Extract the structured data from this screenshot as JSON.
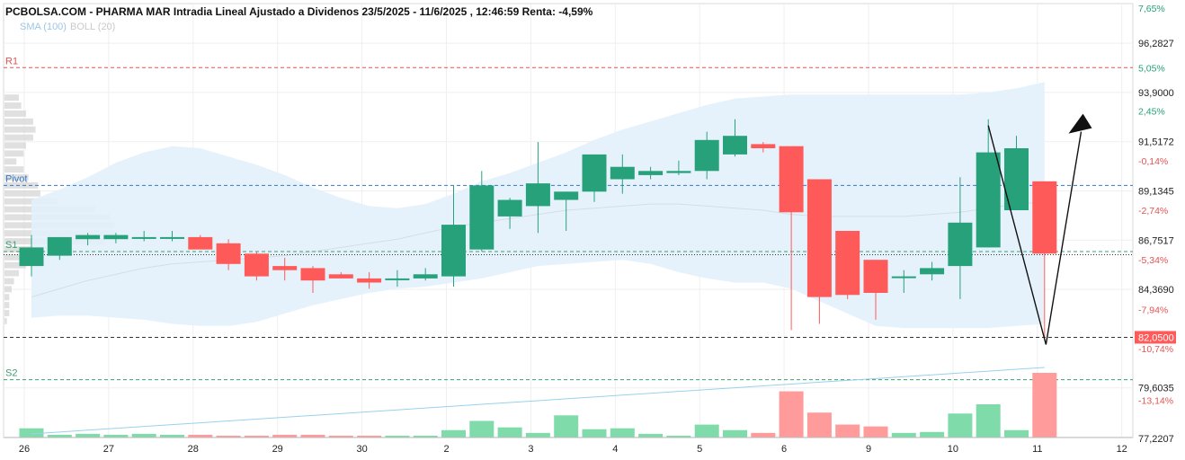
{
  "chart_data": {
    "type": "candlestick",
    "title": "PCBOLSA.COM - PHARMA MAR Intradia Lineal Ajustado a Dividenos 23/5/2025 - 11/6/2025 , 12:46:59 Renta: -4,59%",
    "indicators": [
      {
        "label": "SMA (100)",
        "color": "#9cc7e6"
      },
      {
        "label": "BOLL (20)",
        "color": "#c9c9c9"
      }
    ],
    "colors": {
      "up": "#26a17a",
      "down": "#ff5a5a",
      "up_volume": "#7fdcaa",
      "down_volume": "#ff9b9b",
      "band": "#e3f1fb",
      "pivot": "#3a78c2",
      "r1": "#e35353",
      "s1": "#3aa070",
      "s2": "#3aa070",
      "sma_volume": "#9ad1ee"
    },
    "y_axis": {
      "ylim": [
        77.2,
        98.2
      ],
      "price_ticks": [
        "96,2827",
        "93,9000",
        "91,5172",
        "89,1345",
        "86,7517",
        "84,3690",
        "79,6035",
        "77,2207"
      ],
      "pct_ticks": [
        "7,65%",
        "5,05%",
        "2,45%",
        "-0,14%",
        "-2,74%",
        "-5,34%",
        "-7,94%",
        "-10,74%",
        "-13,14%"
      ],
      "current_price": "82,0500",
      "current_pct": "-10,74%"
    },
    "x_axis": {
      "labels": [
        "26",
        "27",
        "28",
        "29",
        "30",
        "2",
        "3",
        "4",
        "5",
        "6",
        "9",
        "10",
        "11",
        "12"
      ]
    },
    "levels": [
      {
        "name": "R1",
        "value": 95.1,
        "color": "#e35353"
      },
      {
        "name": "Pivot",
        "value": 89.4,
        "color": "#3a78c2"
      },
      {
        "name": "S1",
        "value": 86.2,
        "color": "#3aa070"
      },
      {
        "name": "S2",
        "value": 80.0,
        "color": "#3aa070"
      },
      {
        "name": "",
        "value": 82.05,
        "color": "#333333"
      }
    ],
    "candles": [
      {
        "o": 85.5,
        "h": 87.0,
        "l": 85.0,
        "c": 86.4
      },
      {
        "o": 86.0,
        "h": 86.9,
        "l": 85.8,
        "c": 86.9
      },
      {
        "o": 86.8,
        "h": 87.1,
        "l": 86.5,
        "c": 87.0
      },
      {
        "o": 86.8,
        "h": 87.1,
        "l": 86.6,
        "c": 87.0
      },
      {
        "o": 86.9,
        "h": 87.2,
        "l": 86.7,
        "c": 86.9
      },
      {
        "o": 86.9,
        "h": 87.2,
        "l": 86.7,
        "c": 86.9
      },
      {
        "o": 86.9,
        "h": 87.0,
        "l": 86.5,
        "c": 86.3
      },
      {
        "o": 86.6,
        "h": 86.8,
        "l": 85.3,
        "c": 85.6
      },
      {
        "o": 86.1,
        "h": 86.2,
        "l": 84.8,
        "c": 85.0
      },
      {
        "o": 85.5,
        "h": 85.9,
        "l": 84.8,
        "c": 85.3
      },
      {
        "o": 85.4,
        "h": 85.5,
        "l": 84.2,
        "c": 84.8
      },
      {
        "o": 85.1,
        "h": 85.2,
        "l": 84.9,
        "c": 84.9
      },
      {
        "o": 84.9,
        "h": 85.2,
        "l": 84.4,
        "c": 84.7
      },
      {
        "o": 84.9,
        "h": 85.3,
        "l": 84.5,
        "c": 84.9
      },
      {
        "o": 84.9,
        "h": 85.4,
        "l": 84.8,
        "c": 85.1
      },
      {
        "o": 85.0,
        "h": 89.4,
        "l": 84.5,
        "c": 87.5
      },
      {
        "o": 86.3,
        "h": 90.1,
        "l": 86.2,
        "c": 89.4
      },
      {
        "o": 87.9,
        "h": 88.8,
        "l": 87.3,
        "c": 88.7
      },
      {
        "o": 88.4,
        "h": 91.5,
        "l": 87.1,
        "c": 89.5
      },
      {
        "o": 88.7,
        "h": 89.1,
        "l": 87.2,
        "c": 89.1
      },
      {
        "o": 89.1,
        "h": 90.9,
        "l": 88.6,
        "c": 90.9
      },
      {
        "o": 89.7,
        "h": 90.9,
        "l": 89.0,
        "c": 90.3
      },
      {
        "o": 89.9,
        "h": 90.3,
        "l": 89.7,
        "c": 90.1
      },
      {
        "o": 90.0,
        "h": 90.6,
        "l": 89.9,
        "c": 90.1
      },
      {
        "o": 90.1,
        "h": 92.0,
        "l": 89.7,
        "c": 91.6
      },
      {
        "o": 90.9,
        "h": 92.6,
        "l": 90.8,
        "c": 91.8
      },
      {
        "o": 91.4,
        "h": 91.5,
        "l": 91.0,
        "c": 91.2
      },
      {
        "o": 91.3,
        "h": 91.3,
        "l": 82.4,
        "c": 88.1
      },
      {
        "o": 89.7,
        "h": 89.7,
        "l": 82.7,
        "c": 84.0
      },
      {
        "o": 87.2,
        "h": 87.2,
        "l": 83.9,
        "c": 84.1
      },
      {
        "o": 85.8,
        "h": 85.8,
        "l": 82.9,
        "c": 84.2
      },
      {
        "o": 85.0,
        "h": 85.3,
        "l": 84.2,
        "c": 85.0
      },
      {
        "o": 85.1,
        "h": 85.7,
        "l": 84.8,
        "c": 85.4
      },
      {
        "o": 85.5,
        "h": 89.8,
        "l": 83.9,
        "c": 87.6
      },
      {
        "o": 86.4,
        "h": 92.6,
        "l": 86.4,
        "c": 91.0
      },
      {
        "o": 88.2,
        "h": 91.8,
        "l": 88.2,
        "c": 91.2
      },
      {
        "o": 89.6,
        "h": 89.6,
        "l": 82.05,
        "c": 86.1
      }
    ],
    "boll_upper": [
      88.7,
      89.2,
      89.8,
      90.5,
      91.0,
      91.3,
      91.2,
      90.8,
      90.4,
      89.9,
      89.3,
      88.8,
      88.4,
      88.3,
      88.5,
      89.0,
      89.6,
      90.0,
      90.5,
      91.0,
      91.6,
      92.1,
      92.5,
      92.9,
      93.3,
      93.6,
      93.7,
      93.8,
      93.8,
      93.8,
      93.8,
      93.8,
      93.8,
      93.8,
      93.9,
      94.1,
      94.4
    ],
    "boll_lower": [
      83.0,
      83.1,
      83.1,
      83.0,
      82.9,
      82.7,
      82.6,
      82.6,
      82.8,
      83.2,
      83.6,
      83.9,
      84.2,
      84.4,
      84.5,
      84.7,
      84.9,
      85.2,
      85.5,
      85.6,
      85.7,
      85.8,
      85.6,
      85.2,
      84.9,
      84.7,
      84.7,
      84.4,
      83.8,
      83.2,
      82.6,
      82.5,
      82.5,
      82.5,
      82.5,
      82.6,
      82.7
    ],
    "boll_mid": [
      84.0,
      84.4,
      84.8,
      85.1,
      85.4,
      85.6,
      85.7,
      85.8,
      85.9,
      86.0,
      86.2,
      86.4,
      86.6,
      86.8,
      87.1,
      87.4,
      87.6,
      87.8,
      88.0,
      88.2,
      88.3,
      88.4,
      88.5,
      88.5,
      88.4,
      88.3,
      88.2,
      88.0,
      87.9,
      87.9,
      87.9,
      87.9,
      88.0,
      88.1,
      88.3,
      88.5,
      88.6
    ],
    "volumes": [
      10,
      3,
      4,
      3,
      4,
      3,
      3,
      2,
      2,
      3,
      3,
      2,
      2,
      2,
      2,
      8,
      18,
      11,
      5,
      24,
      9,
      10,
      4,
      2,
      14,
      8,
      5,
      50,
      27,
      14,
      12,
      5,
      6,
      26,
      36,
      8,
      70
    ],
    "volume_sma": [
      2,
      3,
      4,
      5,
      6,
      7,
      8,
      9,
      10,
      11,
      12,
      13,
      14,
      15,
      16,
      17,
      18,
      19,
      20,
      21,
      22,
      23,
      24,
      25,
      26,
      27,
      28,
      29,
      30,
      31,
      32,
      33,
      34,
      35,
      36,
      37,
      38
    ],
    "volume_profile": [
      6,
      7,
      9,
      12,
      13,
      12,
      9,
      8,
      5,
      8,
      10,
      14,
      15,
      22,
      38,
      44,
      46,
      47,
      42,
      23,
      12,
      9,
      6,
      4,
      3,
      2,
      2,
      2,
      1
    ],
    "annotation_arrow": [
      {
        "candle": 34,
        "value": 92.3
      },
      {
        "candle": 36.05,
        "value": 81.7
      },
      {
        "candle": 37.3,
        "value": 92.0
      }
    ]
  }
}
